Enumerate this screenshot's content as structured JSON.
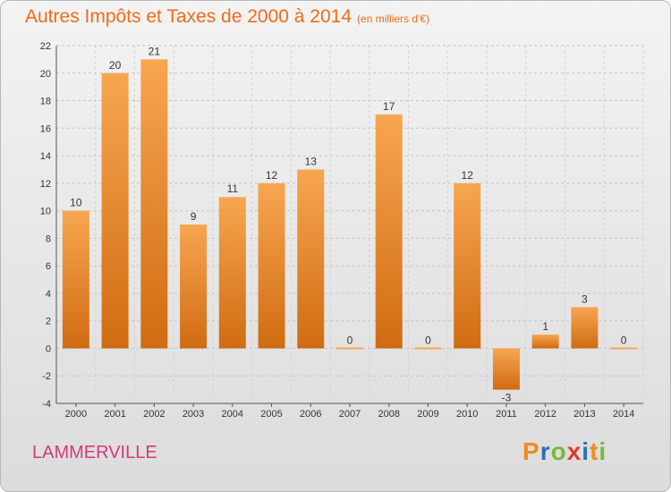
{
  "title": "Autres Impôts et Taxes de 2000 à 2014",
  "subtitle": "(en milliers d'€)",
  "commune": "LAMMERVILLE",
  "logo": {
    "letters": [
      "P",
      "r",
      "o",
      "x",
      "i",
      "t",
      "i"
    ],
    "colors": [
      "#f08a1c",
      "#2b6fb5",
      "#7cb83a",
      "#e03c2e",
      "#2b6fb5",
      "#f08a1c",
      "#7cb83a"
    ]
  },
  "colors": {
    "bar_light": "#f7a650",
    "bar_dark": "#d06c12",
    "title": "#ef6c1a",
    "commune": "#d43a7a"
  },
  "chart_data": {
    "type": "bar",
    "title": "Autres Impôts et Taxes de 2000 à 2014",
    "subtitle": "(en milliers d'€)",
    "categories": [
      "2000",
      "2001",
      "2002",
      "2003",
      "2004",
      "2005",
      "2006",
      "2007",
      "2008",
      "2009",
      "2010",
      "2011",
      "2012",
      "2013",
      "2014"
    ],
    "values": [
      10,
      20,
      21,
      9,
      11,
      12,
      13,
      0,
      17,
      0,
      12,
      -3,
      1,
      3,
      0
    ],
    "ylim": [
      -4,
      22
    ],
    "yticks": [
      -4,
      -2,
      0,
      2,
      4,
      6,
      8,
      10,
      12,
      14,
      16,
      18,
      20,
      22
    ],
    "grid": true
  }
}
